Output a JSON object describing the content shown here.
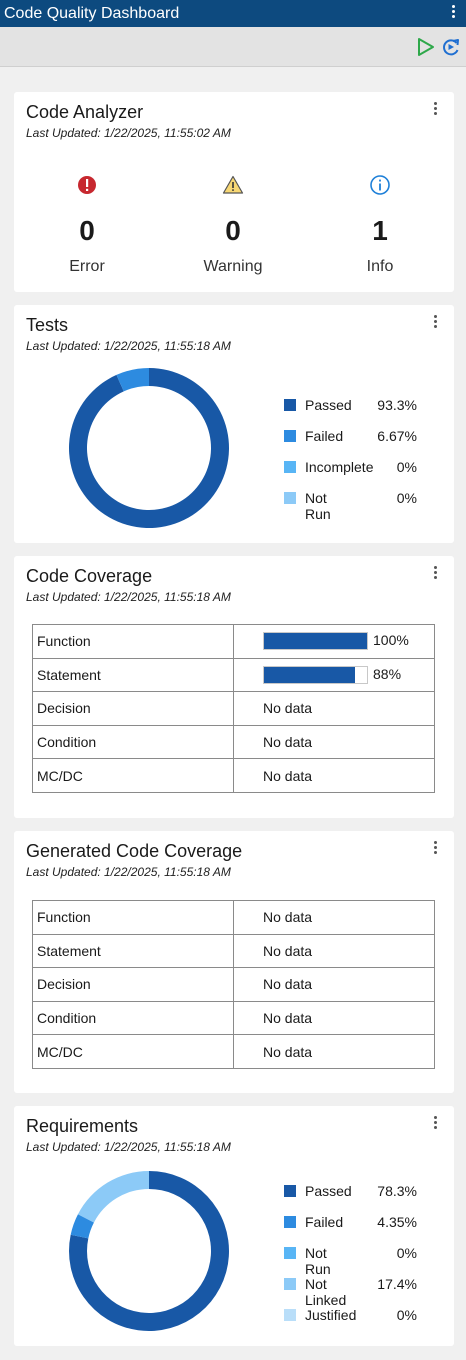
{
  "window": {
    "title": "Code Quality Dashboard"
  },
  "toolbar": {
    "run_icon": "play-icon",
    "refresh_icon": "refresh-icon"
  },
  "colors": {
    "titlebar": "#0d4a7f",
    "accent": "#1858a6",
    "run_green": "#2ea84a"
  },
  "code_analyzer": {
    "title": "Code Analyzer",
    "updated": "Last Updated: 1/22/2025, 11:55:02 AM",
    "items": [
      {
        "icon": "error-icon",
        "count": "0",
        "label": "Error"
      },
      {
        "icon": "warning-icon",
        "count": "0",
        "label": "Warning"
      },
      {
        "icon": "info-icon",
        "count": "1",
        "label": "Info"
      }
    ]
  },
  "tests": {
    "title": "Tests",
    "updated": "Last Updated: 1/22/2025, 11:55:18 AM",
    "legend": [
      {
        "name": "Passed",
        "pct": "93.3%",
        "value": 93.3,
        "color": "#1858a6"
      },
      {
        "name": "Failed",
        "pct": "6.67%",
        "value": 6.67,
        "color": "#2d8be0"
      },
      {
        "name": "Incomplete",
        "pct": "0%",
        "value": 0,
        "color": "#58b5f5"
      },
      {
        "name": "Not Run",
        "pct": "0%",
        "value": 0,
        "color": "#8ccaf7"
      }
    ]
  },
  "code_coverage": {
    "title": "Code Coverage",
    "updated": "Last Updated: 1/22/2025, 11:55:18 AM",
    "rows": [
      {
        "metric": "Function",
        "value": "100%",
        "fraction": 1.0
      },
      {
        "metric": "Statement",
        "value": "88%",
        "fraction": 0.88
      },
      {
        "metric": "Decision",
        "value": "No data"
      },
      {
        "metric": "Condition",
        "value": "No data"
      },
      {
        "metric": "MC/DC",
        "value": "No data"
      }
    ]
  },
  "generated_code_coverage": {
    "title": "Generated Code Coverage",
    "updated": "Last Updated: 1/22/2025, 11:55:18 AM",
    "rows": [
      {
        "metric": "Function",
        "value": "No data"
      },
      {
        "metric": "Statement",
        "value": "No data"
      },
      {
        "metric": "Decision",
        "value": "No data"
      },
      {
        "metric": "Condition",
        "value": "No data"
      },
      {
        "metric": "MC/DC",
        "value": "No data"
      }
    ]
  },
  "requirements": {
    "title": "Requirements",
    "updated": "Last Updated: 1/22/2025, 11:55:18 AM",
    "legend": [
      {
        "name": "Passed",
        "pct": "78.3%",
        "value": 78.3,
        "color": "#1858a6"
      },
      {
        "name": "Failed",
        "pct": "4.35%",
        "value": 4.35,
        "color": "#2d8be0"
      },
      {
        "name": "Not Run",
        "pct": "0%",
        "value": 0,
        "color": "#58b5f5"
      },
      {
        "name": "Not Linked",
        "pct": "17.4%",
        "value": 17.4,
        "color": "#8ccaf7"
      },
      {
        "name": "Justified",
        "pct": "0%",
        "value": 0,
        "color": "#b9def9"
      }
    ]
  }
}
